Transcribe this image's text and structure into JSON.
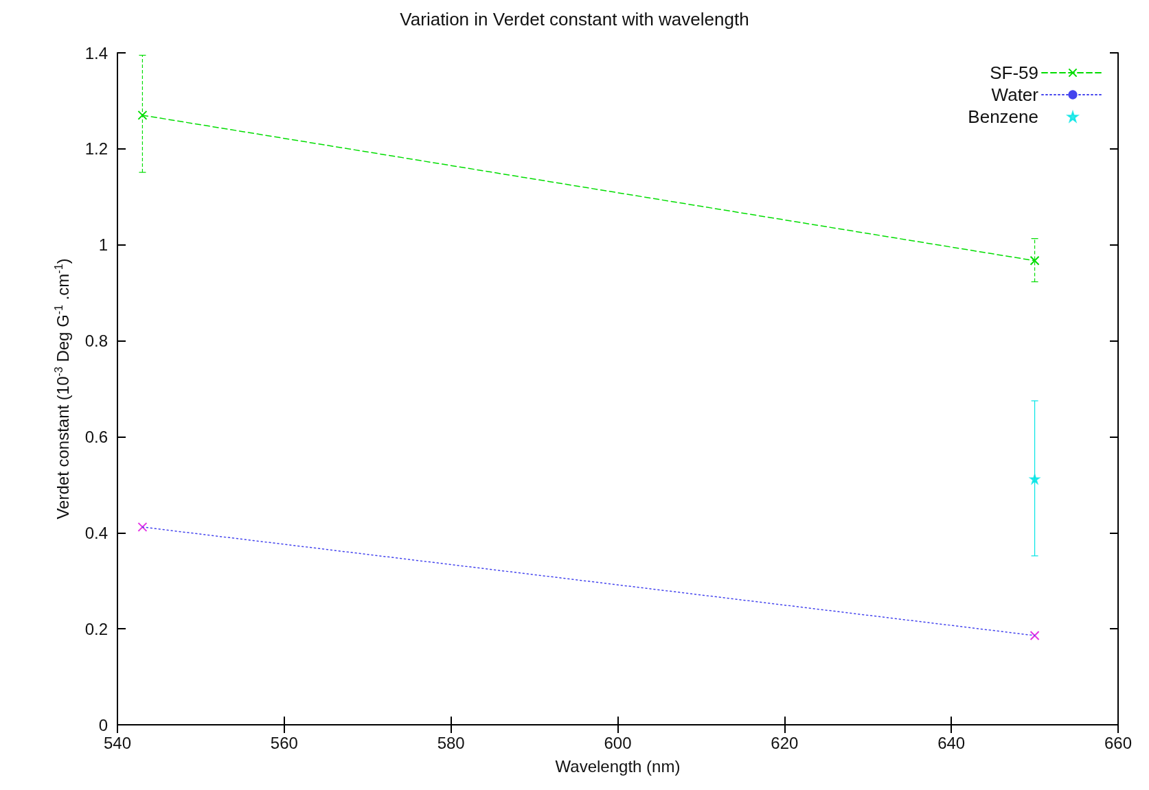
{
  "chart_data": {
    "type": "line",
    "title": "Variation in Verdet constant with wavelength",
    "xlabel": "Wavelength (nm)",
    "ylabel": "Verdet constant (10$^{-3}$ Deg G$^{-1}$ .cm$^{-1}$)",
    "xlim": [
      540,
      660
    ],
    "xticks": [
      540,
      560,
      580,
      600,
      620,
      640,
      660
    ],
    "ylim": [
      0,
      1.4
    ],
    "yticks": [
      0,
      0.2,
      0.4,
      0.6,
      0.8,
      1,
      1.2,
      1.4
    ],
    "grid": false,
    "legend": "top right",
    "x": [
      543,
      650
    ],
    "series": [
      {
        "name": "SF-59",
        "color": "#00dd00",
        "values": [
          1.27,
          0.967
        ],
        "errors": [
          [
            1.151,
            1.395
          ],
          [
            0.923,
            1.013
          ]
        ],
        "line_style": "dashed",
        "marker": "cross"
      },
      {
        "name": "Water",
        "color": "#4444ee",
        "values": [
          0.412,
          0.186
        ],
        "line_style": "dotted",
        "marker": "none"
      },
      {
        "type": "scatter",
        "color": "#dd00dd",
        "values": [
          0.412,
          0.186
        ],
        "marker": "cross"
      },
      {
        "name": "Benzene",
        "type": "scatter",
        "color": "#00e5e5",
        "values": [
          null,
          0.512
        ],
        "errors": [
          null,
          [
            0.352,
            0.675
          ]
        ],
        "marker": "star"
      }
    ]
  }
}
